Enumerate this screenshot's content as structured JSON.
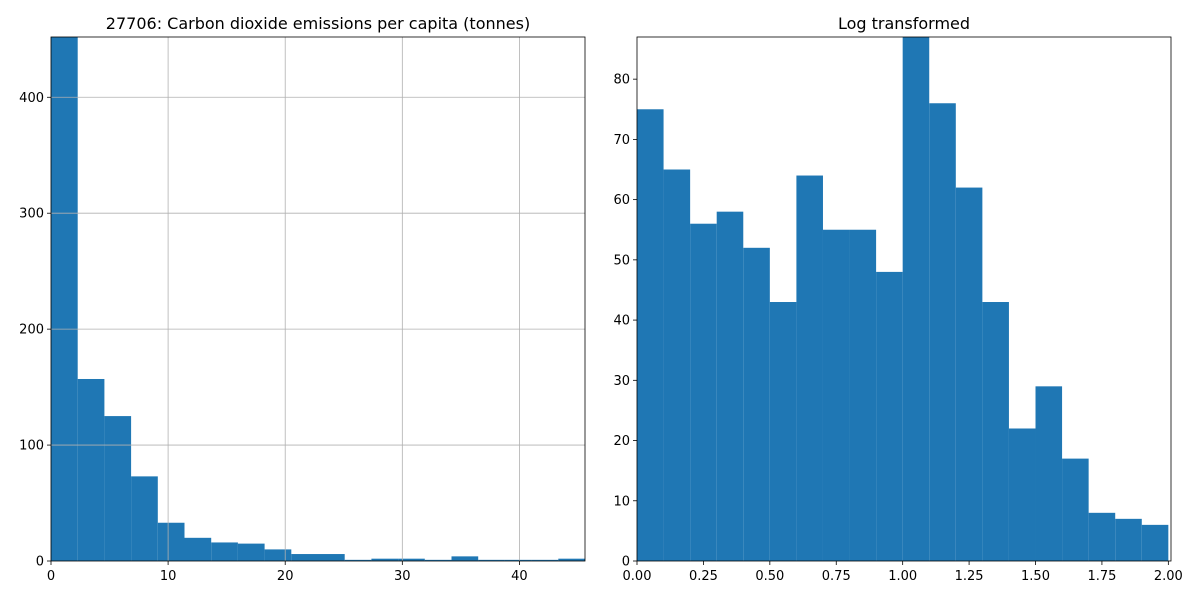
{
  "chart_data": [
    {
      "type": "histogram",
      "title": "27706: Carbon dioxide emissions per capita (tonnes)",
      "xlabel": "",
      "ylabel": "",
      "bin_width": 2.28,
      "bins_start": 0,
      "values": [
        452,
        157,
        125,
        73,
        33,
        20,
        16,
        15,
        10,
        6,
        6,
        1,
        2,
        2,
        1,
        4,
        1,
        1,
        1,
        2
      ],
      "xlim": [
        0,
        45.6
      ],
      "ylim": [
        0,
        452
      ],
      "xticks": [
        0,
        10,
        20,
        30,
        40
      ],
      "yticks": [
        0,
        100,
        200,
        300,
        400
      ],
      "grid": true,
      "color": "#1f77b4"
    },
    {
      "type": "histogram",
      "title": "Log transformed",
      "xlabel": "",
      "ylabel": "",
      "bin_width": 0.1,
      "bins_start": 0,
      "values": [
        75,
        65,
        56,
        58,
        52,
        43,
        64,
        55,
        55,
        48,
        87,
        76,
        62,
        43,
        22,
        29,
        17,
        8,
        7,
        6
      ],
      "xlim": [
        0,
        2.01
      ],
      "ylim": [
        0,
        87
      ],
      "xticks": [
        "0.00",
        "0.25",
        "0.50",
        "0.75",
        "1.00",
        "1.25",
        "1.50",
        "1.75",
        "2.00"
      ],
      "yticks": [
        0,
        10,
        20,
        30,
        40,
        50,
        60,
        70,
        80
      ],
      "grid": false,
      "color": "#1f77b4"
    }
  ]
}
